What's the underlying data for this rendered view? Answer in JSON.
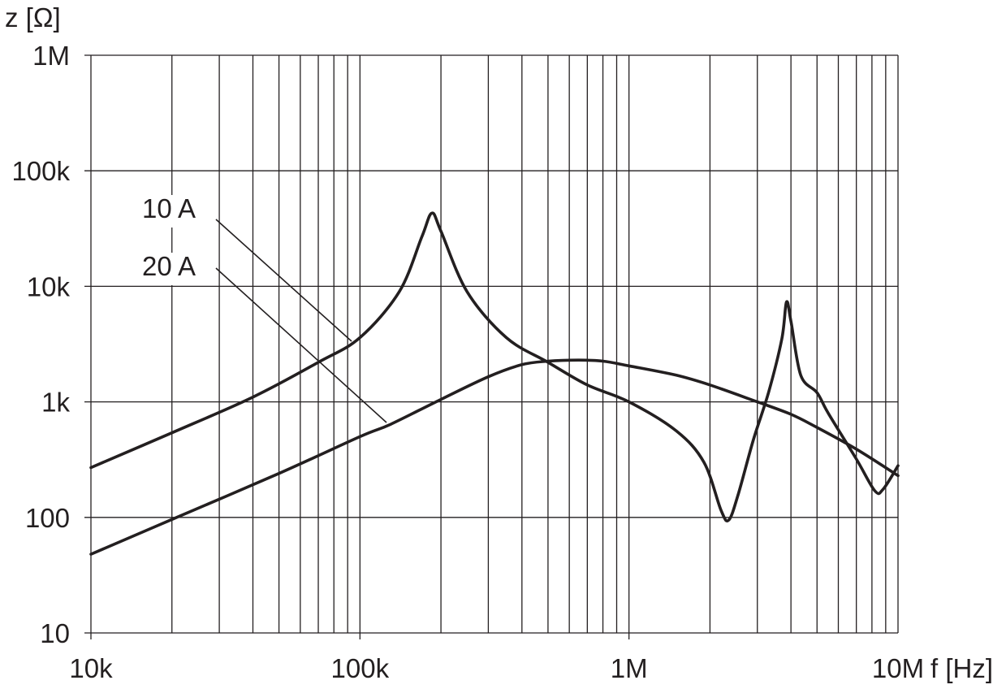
{
  "chart_data": {
    "type": "line",
    "title": "",
    "xlabel": "f [Hz]",
    "ylabel": "z [Ω]",
    "x_scale": "log",
    "y_scale": "log",
    "xlim": [
      10000,
      10000000
    ],
    "ylim": [
      10,
      1000000
    ],
    "x_ticks": [
      10000,
      100000,
      1000000,
      10000000
    ],
    "x_tick_labels": [
      "10k",
      "100k",
      "1M",
      "10M"
    ],
    "y_ticks": [
      10,
      100,
      1000,
      10000,
      100000,
      1000000
    ],
    "y_tick_labels": [
      "10",
      "100",
      "1k",
      "10k",
      "100k",
      "1M"
    ],
    "grid": true,
    "series": [
      {
        "name": "10A",
        "points": [
          [
            10000,
            270
          ],
          [
            20000,
            540
          ],
          [
            40000,
            1100
          ],
          [
            70000,
            2200
          ],
          [
            100000,
            3600
          ],
          [
            140000,
            9000
          ],
          [
            170000,
            27000
          ],
          [
            185000,
            43000
          ],
          [
            200000,
            30000
          ],
          [
            250000,
            9000
          ],
          [
            350000,
            3600
          ],
          [
            500000,
            2200
          ],
          [
            700000,
            1400
          ],
          [
            1000000,
            1000
          ],
          [
            1500000,
            560
          ],
          [
            1900000,
            300
          ],
          [
            2200000,
            115
          ],
          [
            2350000,
            95
          ],
          [
            2550000,
            160
          ],
          [
            2900000,
            470
          ],
          [
            3300000,
            1200
          ],
          [
            3700000,
            3500
          ],
          [
            3850000,
            7300
          ],
          [
            4000000,
            5000
          ],
          [
            4350000,
            1700
          ],
          [
            5000000,
            1200
          ],
          [
            5500000,
            800
          ],
          [
            7000000,
            320
          ],
          [
            8200000,
            170
          ],
          [
            8800000,
            175
          ],
          [
            10000000,
            280
          ]
        ]
      },
      {
        "name": "20A",
        "points": [
          [
            10000,
            48
          ],
          [
            20000,
            96
          ],
          [
            50000,
            240
          ],
          [
            100000,
            500
          ],
          [
            130000,
            640
          ],
          [
            200000,
            1050
          ],
          [
            300000,
            1650
          ],
          [
            400000,
            2100
          ],
          [
            500000,
            2250
          ],
          [
            650000,
            2300
          ],
          [
            800000,
            2250
          ],
          [
            1000000,
            2050
          ],
          [
            1500000,
            1700
          ],
          [
            2000000,
            1400
          ],
          [
            3000000,
            1000
          ],
          [
            4000000,
            780
          ],
          [
            5000000,
            600
          ],
          [
            7000000,
            390
          ],
          [
            10000000,
            230
          ]
        ]
      }
    ],
    "annotations": [
      {
        "text": "10 A",
        "series": "10A"
      },
      {
        "text": "20 A",
        "series": "20A"
      }
    ]
  }
}
